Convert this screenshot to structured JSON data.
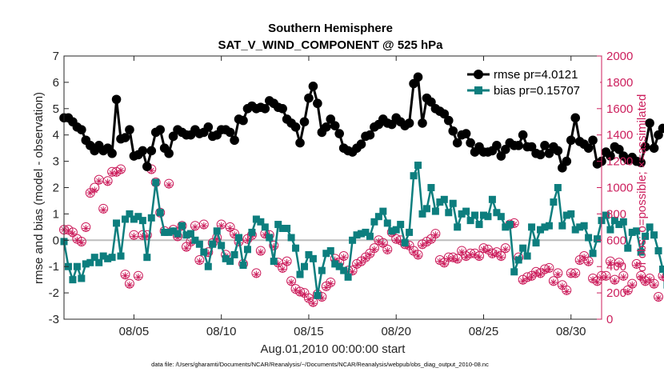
{
  "chart_data": {
    "type": "line",
    "title": "Southern Hemisphere",
    "subtitle": "SAT_V_WIND_COMPONENT @ 525 hPa",
    "xlabel": "Aug.01,2010 00:00:00 start",
    "ylabel": "rmse and bias (model - observation)",
    "ylabel_right": "# of obs: o=possible; ×=assimilated",
    "xlim": [
      1.0,
      31.75
    ],
    "ylim": [
      -3,
      7
    ],
    "ylim_right": [
      0,
      2000
    ],
    "x_ticks": [
      {
        "value": 5,
        "label": "08/05"
      },
      {
        "value": 10,
        "label": "08/10"
      },
      {
        "value": 15,
        "label": "08/15"
      },
      {
        "value": 20,
        "label": "08/20"
      },
      {
        "value": 25,
        "label": "08/25"
      },
      {
        "value": 30,
        "label": "08/30"
      }
    ],
    "y_ticks": [
      "-3",
      "-2",
      "-1",
      "0",
      "1",
      "2",
      "3",
      "4",
      "5",
      "6",
      "7"
    ],
    "y_ticks_right": [
      "0",
      "200",
      "400",
      "600",
      "800",
      "1000",
      "1200",
      "1400",
      "1600",
      "1800",
      "2000"
    ],
    "x_step": 0.25,
    "x_start": 1.0,
    "series": [
      {
        "name": "rmse",
        "legend": "rmse pr=4.0121",
        "color": "#000000",
        "marker": "circle",
        "values": [
          4.65,
          4.65,
          4.5,
          4.3,
          4.2,
          3.8,
          3.6,
          3.4,
          3.6,
          3.4,
          3.5,
          3.3,
          5.35,
          3.85,
          3.9,
          4.2,
          3.2,
          3.25,
          3.4,
          2.8,
          3.4,
          4.1,
          4.2,
          3.5,
          3.3,
          3.95,
          4.2,
          4.1,
          4.0,
          4.0,
          4.2,
          4.05,
          4.1,
          4.3,
          3.95,
          4.0,
          4.2,
          4.2,
          4.1,
          3.8,
          4.6,
          4.55,
          5.0,
          5.1,
          5.0,
          5.05,
          5.0,
          5.3,
          5.2,
          5.05,
          5.0,
          4.6,
          4.45,
          4.3,
          3.7,
          4.5,
          5.4,
          5.85,
          5.2,
          4.1,
          4.3,
          4.6,
          4.35,
          4.05,
          3.5,
          3.4,
          3.35,
          3.5,
          3.65,
          3.95,
          4.0,
          4.3,
          4.4,
          4.6,
          4.45,
          4.4,
          4.65,
          4.5,
          4.35,
          4.45,
          5.95,
          6.2,
          4.45,
          5.4,
          5.25,
          5.0,
          4.9,
          4.8,
          4.55,
          4.15,
          3.7,
          4.0,
          4.05,
          3.7,
          3.35,
          3.55,
          3.35,
          3.35,
          3.4,
          3.6,
          3.2,
          3.45,
          3.7,
          3.6,
          3.6,
          4.0,
          3.55,
          3.55,
          3.3,
          3.25,
          3.6,
          3.3,
          3.55,
          3.4,
          2.75,
          3.0,
          3.8,
          4.65,
          3.75,
          3.65,
          3.5,
          3.8,
          2.9,
          3.0,
          3.35,
          3.2,
          3.55,
          3.45,
          3.2,
          3.05,
          3.15,
          3.0,
          2.95,
          3.55,
          4.45,
          3.5,
          4.0,
          4.25
        ]
      },
      {
        "name": "bias",
        "legend": "bias pr=0.15707",
        "color": "#0d7e7e",
        "marker": "square",
        "values": [
          -0.05,
          -1.0,
          -1.5,
          -1.0,
          -1.45,
          -0.9,
          -0.85,
          -0.65,
          -0.85,
          -0.6,
          -0.7,
          -0.65,
          0.65,
          -0.6,
          0.8,
          1.0,
          0.8,
          0.9,
          0.75,
          -0.65,
          0.85,
          2.2,
          1.05,
          0.3,
          0.3,
          0.35,
          0.25,
          0.55,
          0.2,
          0.25,
          0.0,
          -0.15,
          -0.45,
          -1.0,
          -0.15,
          0.35,
          -0.2,
          -0.7,
          -0.8,
          -0.55,
          0.1,
          -0.95,
          -0.35,
          0.3,
          0.8,
          0.7,
          0.5,
          0.1,
          -0.8,
          0.6,
          0.45,
          0.45,
          0.1,
          -0.3,
          -1.3,
          -1.0,
          -0.55,
          -0.7,
          -2.1,
          -1.15,
          -0.5,
          -0.4,
          -0.9,
          -1.0,
          -1.15,
          -1.4,
          0.0,
          0.2,
          0.25,
          0.3,
          0.15,
          0.7,
          0.9,
          1.1,
          0.65,
          0.35,
          0.4,
          0.6,
          -0.1,
          0.3,
          2.45,
          2.85,
          1.0,
          1.2,
          2.0,
          1.1,
          1.45,
          1.55,
          1.05,
          1.4,
          0.5,
          1.0,
          1.1,
          0.75,
          0.95,
          0.6,
          0.95,
          0.9,
          1.55,
          1.05,
          0.9,
          0.5,
          0.6,
          -1.2,
          -0.75,
          -0.3,
          -0.6,
          0.5,
          -0.1,
          0.4,
          0.5,
          0.55,
          1.45,
          2.0,
          0.55,
          0.95,
          1.0,
          0.4,
          0.5,
          0.55,
          0.1,
          -0.5,
          0.05,
          0.75,
          0.95,
          0.4,
          0.75,
          0.6,
          0.7,
          -0.3,
          0.3,
          0.35,
          -0.45,
          0.15,
          0.5,
          0.2,
          -0.4,
          -1.1,
          -1.7,
          -1.1
        ]
      },
      {
        "name": "obs possible",
        "color": "#cc1f5d",
        "marker": "circle-open",
        "values": [
          680,
          680,
          660,
          610,
          590,
          700,
          960,
          1000,
          1060,
          840,
          1050,
          1120,
          1120,
          1140,
          340,
          270,
          640,
          330,
          640,
          640,
          1140,
          1040,
          810,
          670,
          1030,
          680,
          630,
          710,
          550,
          590,
          710,
          450,
          720,
          510,
          580,
          620,
          720,
          490,
          700,
          650,
          590,
          420,
          610,
          640,
          350,
          520,
          650,
          640,
          560,
          430,
          390,
          440,
          290,
          230,
          210,
          200,
          160,
          130,
          190,
          170,
          250,
          280,
          460,
          430,
          480,
          370,
          370,
          420,
          440,
          470,
          500,
          540,
          600,
          580,
          530,
          660,
          610,
          600,
          570,
          560,
          520,
          490,
          570,
          590,
          610,
          650,
          450,
          430,
          470,
          470,
          460,
          520,
          480,
          500,
          500,
          480,
          540,
          530,
          500,
          510,
          480,
          540,
          720,
          730,
          470,
          300,
          320,
          330,
          360,
          350,
          380,
          390,
          290,
          350,
          260,
          220,
          350,
          350,
          450,
          480,
          440,
          310,
          290,
          330,
          330,
          440,
          300,
          430,
          330,
          220,
          270,
          420,
          330,
          290,
          310,
          270,
          170,
          330,
          310,
          290
        ]
      },
      {
        "name": "obs assimilated",
        "color": "#cc1f5d",
        "marker": "asterisk",
        "values": [
          680,
          670,
          650,
          600,
          580,
          690,
          960,
          980,
          1050,
          830,
          1040,
          1110,
          1110,
          1130,
          330,
          260,
          630,
          320,
          630,
          630,
          1130,
          1030,
          800,
          660,
          1020,
          670,
          620,
          700,
          540,
          580,
          700,
          440,
          710,
          500,
          570,
          610,
          710,
          480,
          690,
          640,
          580,
          410,
          600,
          630,
          340,
          510,
          640,
          630,
          550,
          420,
          380,
          430,
          280,
          220,
          200,
          190,
          150,
          120,
          180,
          160,
          240,
          270,
          450,
          420,
          470,
          360,
          360,
          410,
          430,
          460,
          490,
          530,
          590,
          570,
          520,
          650,
          600,
          590,
          560,
          550,
          510,
          480,
          560,
          580,
          600,
          640,
          440,
          420,
          460,
          460,
          450,
          510,
          470,
          490,
          490,
          470,
          530,
          520,
          490,
          500,
          470,
          530,
          710,
          720,
          460,
          290,
          310,
          320,
          350,
          340,
          370,
          380,
          280,
          340,
          250,
          210,
          340,
          340,
          440,
          470,
          430,
          300,
          280,
          320,
          320,
          430,
          290,
          420,
          320,
          210,
          260,
          410,
          320,
          280,
          300,
          260,
          160,
          320,
          300,
          280
        ]
      }
    ],
    "footer": "data file: /Users/gharamti/Documents/NCAR/Reanalysis/~/Documents/NCAR/Reanalysis/webpub/obs_diag_output_2010-08.nc"
  }
}
